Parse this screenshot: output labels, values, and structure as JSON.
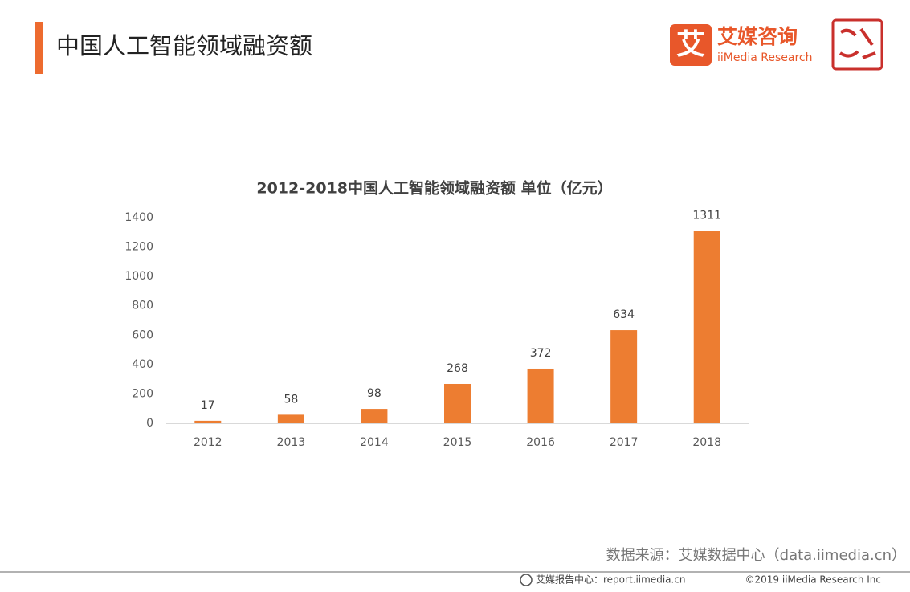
{
  "header": {
    "title": "中国人工智能领域融资额",
    "logo_icon": "艾",
    "logo_cn": "艾媒咨询",
    "logo_en": "iiMedia Research"
  },
  "chart_data": {
    "type": "bar",
    "title": "2012-2018中国人工智能领域融资额 单位（亿元）",
    "categories": [
      "2012",
      "2013",
      "2014",
      "2015",
      "2016",
      "2017",
      "2018"
    ],
    "values": [
      17,
      58,
      98,
      268,
      372,
      634,
      1311
    ],
    "color": "#ed7d31",
    "ylim": [
      0,
      1400
    ],
    "yticks": [
      0,
      200,
      400,
      600,
      800,
      1000,
      1200,
      1400
    ],
    "grid": false
  },
  "footer": {
    "source": "数据来源：艾媒数据中心（data.iimedia.cn）",
    "report": "艾媒报告中心：report.iimedia.cn",
    "copyright": "©2019  iiMedia Research Inc"
  }
}
